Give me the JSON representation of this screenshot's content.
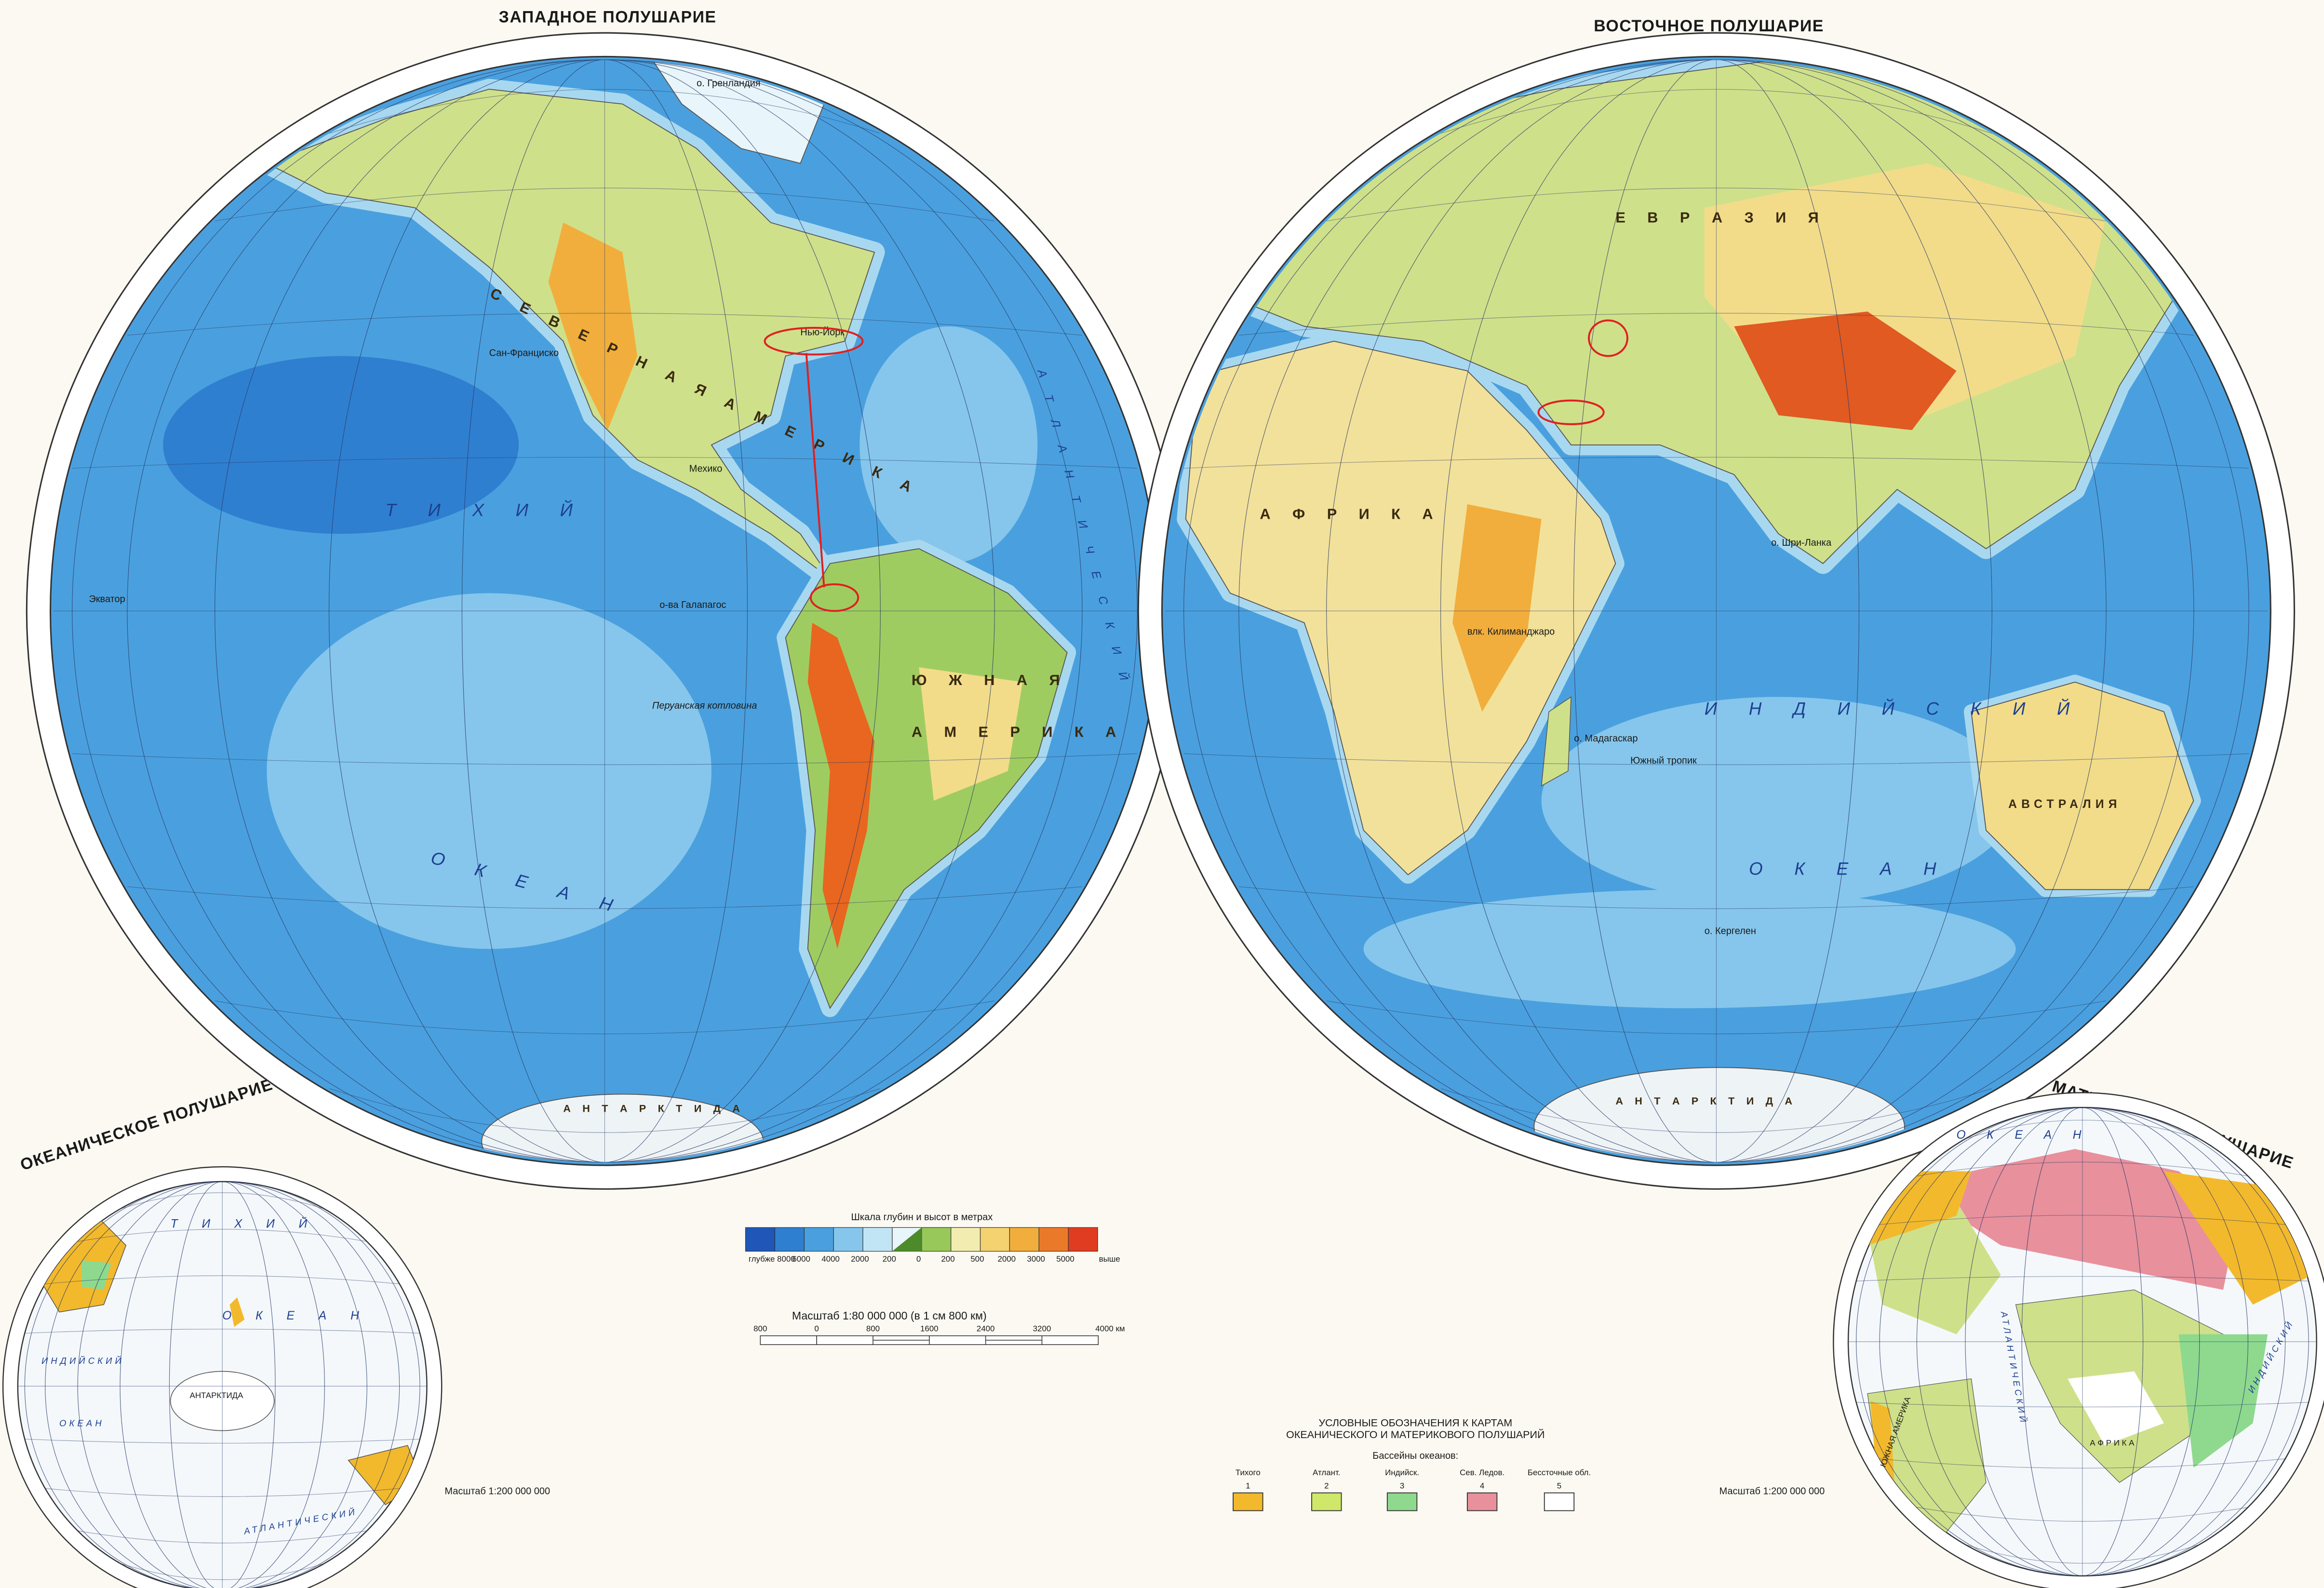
{
  "titles": {
    "western": "ЗАПАДНОЕ ПОЛУШАРИЕ",
    "eastern": "ВОСТОЧНОЕ ПОЛУШАРИЕ",
    "oceanic": "ОКЕАНИЧЕСКОЕ ПОЛУШАРИЕ",
    "continental": "МАТЕРИКОВОЕ ПОЛУШАРИЕ"
  },
  "western_labels": {
    "pacific_1": "Т И Х И Й",
    "pacific_2": "О К Е А Н",
    "north_america": "С Е В Е Р Н А Я   А М Е Р И К А",
    "south_america_1": "Ю Ж Н А Я",
    "south_america_2": "А М Е Р И К А",
    "atlantic": "А Т Л А Н Т И Ч Е С К И Й",
    "antarctica": "А Н Т А Р К Т И Д А",
    "greenland": "о. Гренландия",
    "equator": "Экватор",
    "galapagos": "о-ва Галапагос",
    "peru_basin": "Перуанская котловина",
    "mexico": "Мехико",
    "san_francisco": "Сан-Франциско",
    "new_york": "Нью-Йорк"
  },
  "eastern_labels": {
    "eurasia": "Е В Р А З И Я",
    "africa": "А Ф Р И К А",
    "indian_1": "И Н Д И Й С К И Й",
    "indian_2": "О К Е А Н",
    "australia": "АВСТРАЛИЯ",
    "antarctica": "А Н Т А Р К Т И Д А",
    "kilimanjaro": "влк. Килиманджаро",
    "madagascar": "о. Мадагаскар",
    "sri_lanka": "о. Шри-Ланка",
    "kerguelen": "о. Кергелен",
    "southern_tropic": "Южный тропик"
  },
  "oceanic_labels": {
    "pacific": "Т И Х И Й",
    "ocean": "О К Е А Н",
    "indian": "ИНДИЙСКИЙ",
    "indian_ocean": "ОКЕАН",
    "antarctica": "АНТАРКТИДА",
    "atlantic": "АТЛАНТИЧЕСКИЙ"
  },
  "continental_labels": {
    "ocean": "О К Е А Н",
    "atlantic": "АТЛАНТИЧЕСКИЙ",
    "indian": "ИНДИЙСКИЙ",
    "south_america": "ЮЖНАЯ АМЕРИКА",
    "africa": "А Ф Р И К А"
  },
  "small_map_scale": "Масштаб 1:200 000 000",
  "depth_legend": {
    "title": "Шкала глубин и высот в метрах",
    "labels": [
      "глубже 8000",
      "6000",
      "4000",
      "2000",
      "200",
      "0",
      "200",
      "500",
      "2000",
      "3000",
      "5000",
      "выше"
    ],
    "colors": [
      "#1f56b8",
      "#2f7fd0",
      "#4aa0de",
      "#86c6ec",
      "#c2e5f5",
      "#e8f5fa",
      "#98c85a",
      "#f2ecb0",
      "#f5d270",
      "#f1ae3c",
      "#ea7a2a",
      "#e03c22"
    ]
  },
  "scale_bar": {
    "title": "Масштаб 1:80 000 000 (в 1 см 800 км)",
    "ticks": [
      "800",
      "0",
      "800",
      "1600",
      "2400",
      "3200",
      "4000 км"
    ]
  },
  "basin_legend": {
    "title_line1": "УСЛОВНЫЕ ОБОЗНАЧЕНИЯ К КАРТАМ",
    "title_line2": "ОКЕАНИЧЕСКОГО И МАТЕРИКОВОГО ПОЛУШАРИЙ",
    "subtitle": "Бассейны океанов:",
    "items": [
      {
        "label": "Тихого",
        "number": "1",
        "color": "#f3b92c"
      },
      {
        "label": "Атлант.",
        "number": "2",
        "color": "#cfe86a"
      },
      {
        "label": "Индийск.",
        "number": "3",
        "color": "#8ed98e"
      },
      {
        "label": "Сев. Ледов.",
        "number": "4",
        "color": "#e8909c"
      },
      {
        "label": "Бессточные обл.",
        "number": "5",
        "color": "#ffffff"
      }
    ]
  },
  "colors": {
    "ocean_deep": "#2f7fd0",
    "ocean_mid": "#4aa0de",
    "shelf": "#a8d8f0",
    "lowland": "#98c85a",
    "upland": "#f2e19a",
    "mountains": "#ea8a30",
    "annotation": "#e02020"
  }
}
